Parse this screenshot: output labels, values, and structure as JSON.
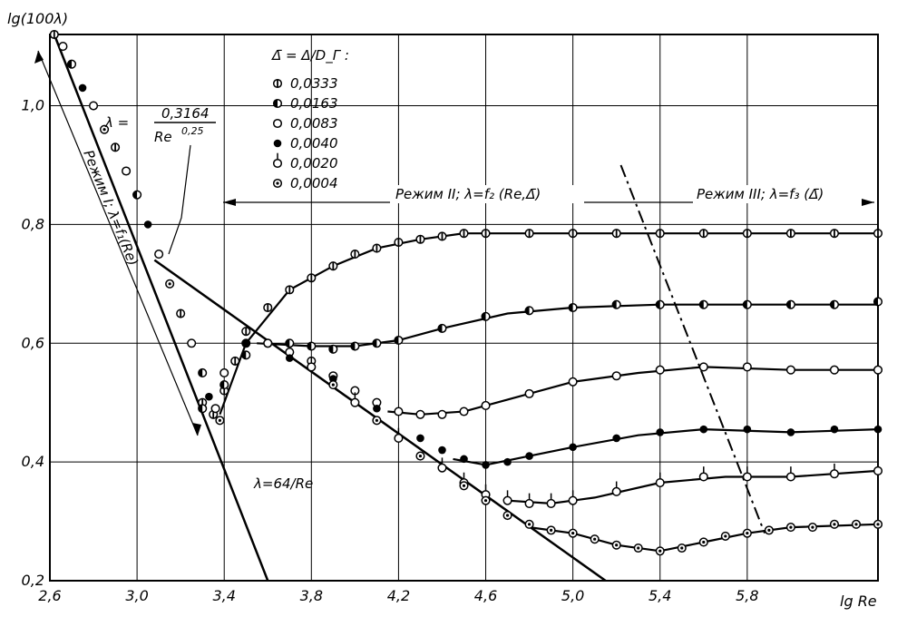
{
  "chart_data": {
    "type": "scatter",
    "ylabel": "lg(100λ)",
    "xlabel": "lg Re",
    "xlim": [
      2.6,
      6.4
    ],
    "ylim": [
      0.2,
      1.12
    ],
    "x_ticks": [
      "2,6",
      "3,0",
      "3,4",
      "3,8",
      "4,2",
      "4,6",
      "5,0",
      "5,4",
      "5,8"
    ],
    "y_ticks": [
      "0,2",
      "0,4",
      "0,6",
      "0,8",
      "1,0"
    ],
    "grid": true,
    "legend_placement": "top-left",
    "legend_title": "Δ̄ = Δ/D_Г :",
    "series": [
      {
        "name": "0,0333",
        "marker": "half-vertical",
        "x": [
          3.3,
          3.35,
          3.4,
          3.45,
          3.5,
          3.6,
          3.7,
          3.8,
          3.9,
          4.0,
          4.1,
          4.2,
          4.3,
          4.4,
          4.5,
          4.6,
          4.8,
          5.0,
          5.2,
          5.4,
          5.6,
          5.8,
          6.0,
          6.2,
          6.4
        ],
        "y": [
          0.5,
          0.48,
          0.52,
          0.57,
          0.62,
          0.66,
          0.69,
          0.71,
          0.73,
          0.75,
          0.76,
          0.77,
          0.775,
          0.78,
          0.785,
          0.785,
          0.785,
          0.785,
          0.785,
          0.785,
          0.785,
          0.785,
          0.785,
          0.785,
          0.785
        ]
      },
      {
        "name": "0,0163",
        "marker": "half-filled",
        "x": [
          3.3,
          3.4,
          3.5,
          3.6,
          3.7,
          3.8,
          3.9,
          4.0,
          4.1,
          4.2,
          4.4,
          4.6,
          4.8,
          5.0,
          5.2,
          5.4,
          5.6,
          5.8,
          6.0,
          6.2,
          6.4
        ],
        "y": [
          0.49,
          0.53,
          0.58,
          0.6,
          0.6,
          0.595,
          0.59,
          0.595,
          0.6,
          0.605,
          0.625,
          0.645,
          0.655,
          0.66,
          0.665,
          0.665,
          0.665,
          0.665,
          0.665,
          0.665,
          0.67
        ]
      },
      {
        "name": "0,0083",
        "marker": "open",
        "x": [
          3.4,
          3.5,
          3.6,
          3.7,
          3.8,
          3.9,
          4.0,
          4.1,
          4.2,
          4.3,
          4.4,
          4.5,
          4.6,
          4.8,
          5.0,
          5.2,
          5.4,
          5.6,
          5.8,
          6.0,
          6.2,
          6.4
        ],
        "y": [
          0.55,
          0.6,
          0.6,
          0.585,
          0.57,
          0.545,
          0.52,
          0.5,
          0.485,
          0.48,
          0.48,
          0.485,
          0.495,
          0.515,
          0.535,
          0.545,
          0.555,
          0.56,
          0.56,
          0.555,
          0.555,
          0.555
        ]
      },
      {
        "name": "0,0040",
        "marker": "filled",
        "x": [
          3.5,
          3.7,
          3.9,
          4.1,
          4.3,
          4.4,
          4.5,
          4.6,
          4.7,
          4.8,
          5.0,
          5.2,
          5.4,
          5.6,
          5.8,
          6.0,
          6.2,
          6.4
        ],
        "y": [
          0.6,
          0.575,
          0.54,
          0.49,
          0.44,
          0.42,
          0.405,
          0.395,
          0.4,
          0.41,
          0.425,
          0.44,
          0.45,
          0.455,
          0.455,
          0.45,
          0.455,
          0.455
        ]
      },
      {
        "name": "0,0020",
        "marker": "tick",
        "x": [
          3.8,
          4.0,
          4.2,
          4.4,
          4.5,
          4.6,
          4.7,
          4.8,
          4.9,
          5.0,
          5.2,
          5.4,
          5.6,
          5.8,
          6.0,
          6.2,
          6.4
        ],
        "y": [
          0.56,
          0.5,
          0.44,
          0.39,
          0.365,
          0.345,
          0.335,
          0.33,
          0.33,
          0.335,
          0.35,
          0.365,
          0.375,
          0.375,
          0.375,
          0.38,
          0.385
        ]
      },
      {
        "name": "0,0004",
        "marker": "dot",
        "x": [
          3.9,
          4.1,
          4.3,
          4.5,
          4.6,
          4.7,
          4.8,
          4.9,
          5.0,
          5.1,
          5.2,
          5.3,
          5.4,
          5.5,
          5.6,
          5.7,
          5.8,
          5.9,
          6.0,
          6.1,
          6.2,
          6.3,
          6.4
        ],
        "y": [
          0.53,
          0.47,
          0.41,
          0.36,
          0.335,
          0.31,
          0.295,
          0.285,
          0.28,
          0.27,
          0.26,
          0.255,
          0.25,
          0.255,
          0.265,
          0.275,
          0.28,
          0.285,
          0.29,
          0.29,
          0.295,
          0.295,
          0.295
        ]
      },
      {
        "name": "laminar-low",
        "marker": "mixed",
        "x": [
          2.62,
          2.66,
          2.7,
          2.75,
          2.8,
          2.85,
          2.9,
          2.95,
          3.0,
          3.05,
          3.1,
          3.15,
          3.2,
          3.25,
          3.3,
          3.33,
          3.36,
          3.38
        ],
        "y": [
          1.12,
          1.1,
          1.07,
          1.03,
          1.0,
          0.96,
          0.93,
          0.89,
          0.85,
          0.8,
          0.75,
          0.7,
          0.65,
          0.6,
          0.55,
          0.51,
          0.49,
          0.47
        ]
      }
    ],
    "lines": [
      {
        "label": "λ=64/Re",
        "x": [
          2.62,
          3.6
        ],
        "y": [
          1.12,
          0.2
        ]
      },
      {
        "label": "λ=0,3164/Re^0,25",
        "x": [
          3.08,
          5.15
        ],
        "y": [
          0.74,
          0.2
        ]
      },
      {
        "label": "regime-III-boundary",
        "style": "dash-dot",
        "x": [
          5.22,
          5.88
        ],
        "y": [
          0.9,
          0.28
        ]
      }
    ],
    "fit_curves": [
      {
        "series": "0,0333",
        "x": [
          3.38,
          3.5,
          3.7,
          3.9,
          4.1,
          4.3,
          4.5,
          4.7,
          5.0,
          5.5,
          6.0,
          6.4
        ],
        "y": [
          0.48,
          0.6,
          0.69,
          0.73,
          0.76,
          0.775,
          0.785,
          0.785,
          0.785,
          0.785,
          0.785,
          0.785
        ]
      },
      {
        "series": "0,0163",
        "x": [
          3.55,
          3.8,
          4.0,
          4.2,
          4.4,
          4.7,
          5.0,
          5.4,
          6.0,
          6.4
        ],
        "y": [
          0.6,
          0.595,
          0.595,
          0.605,
          0.625,
          0.65,
          0.66,
          0.665,
          0.665,
          0.665
        ]
      },
      {
        "series": "0,0083",
        "x": [
          4.15,
          4.3,
          4.5,
          4.7,
          5.0,
          5.3,
          5.6,
          6.0,
          6.4
        ],
        "y": [
          0.485,
          0.48,
          0.485,
          0.505,
          0.535,
          0.55,
          0.56,
          0.555,
          0.555
        ]
      },
      {
        "series": "0,0040",
        "x": [
          4.45,
          4.6,
          4.8,
          5.0,
          5.3,
          5.6,
          6.0,
          6.4
        ],
        "y": [
          0.405,
          0.395,
          0.41,
          0.425,
          0.445,
          0.455,
          0.45,
          0.455
        ]
      },
      {
        "series": "0,0020",
        "x": [
          4.7,
          4.9,
          5.1,
          5.4,
          5.7,
          6.0,
          6.4
        ],
        "y": [
          0.335,
          0.33,
          0.34,
          0.365,
          0.375,
          0.375,
          0.385
        ]
      },
      {
        "series": "0,0004",
        "x": [
          4.8,
          5.0,
          5.2,
          5.4,
          5.6,
          5.8,
          6.0,
          6.4
        ],
        "y": [
          0.29,
          0.28,
          0.26,
          0.25,
          0.265,
          0.28,
          0.29,
          0.295
        ]
      }
    ],
    "annotations": {
      "blasius_formula_lhs": "λ =",
      "blasius_num": "0,3164",
      "blasius_den": "Re",
      "blasius_exp": "0,25",
      "laminar": "λ=64/Re",
      "regime1": "Режим I; λ=f₁(Re)",
      "regime2": "Режим II; λ=f₂ (Re,Δ̄)",
      "regime3": "Режим III; λ=f₃ (Δ̄)"
    }
  }
}
